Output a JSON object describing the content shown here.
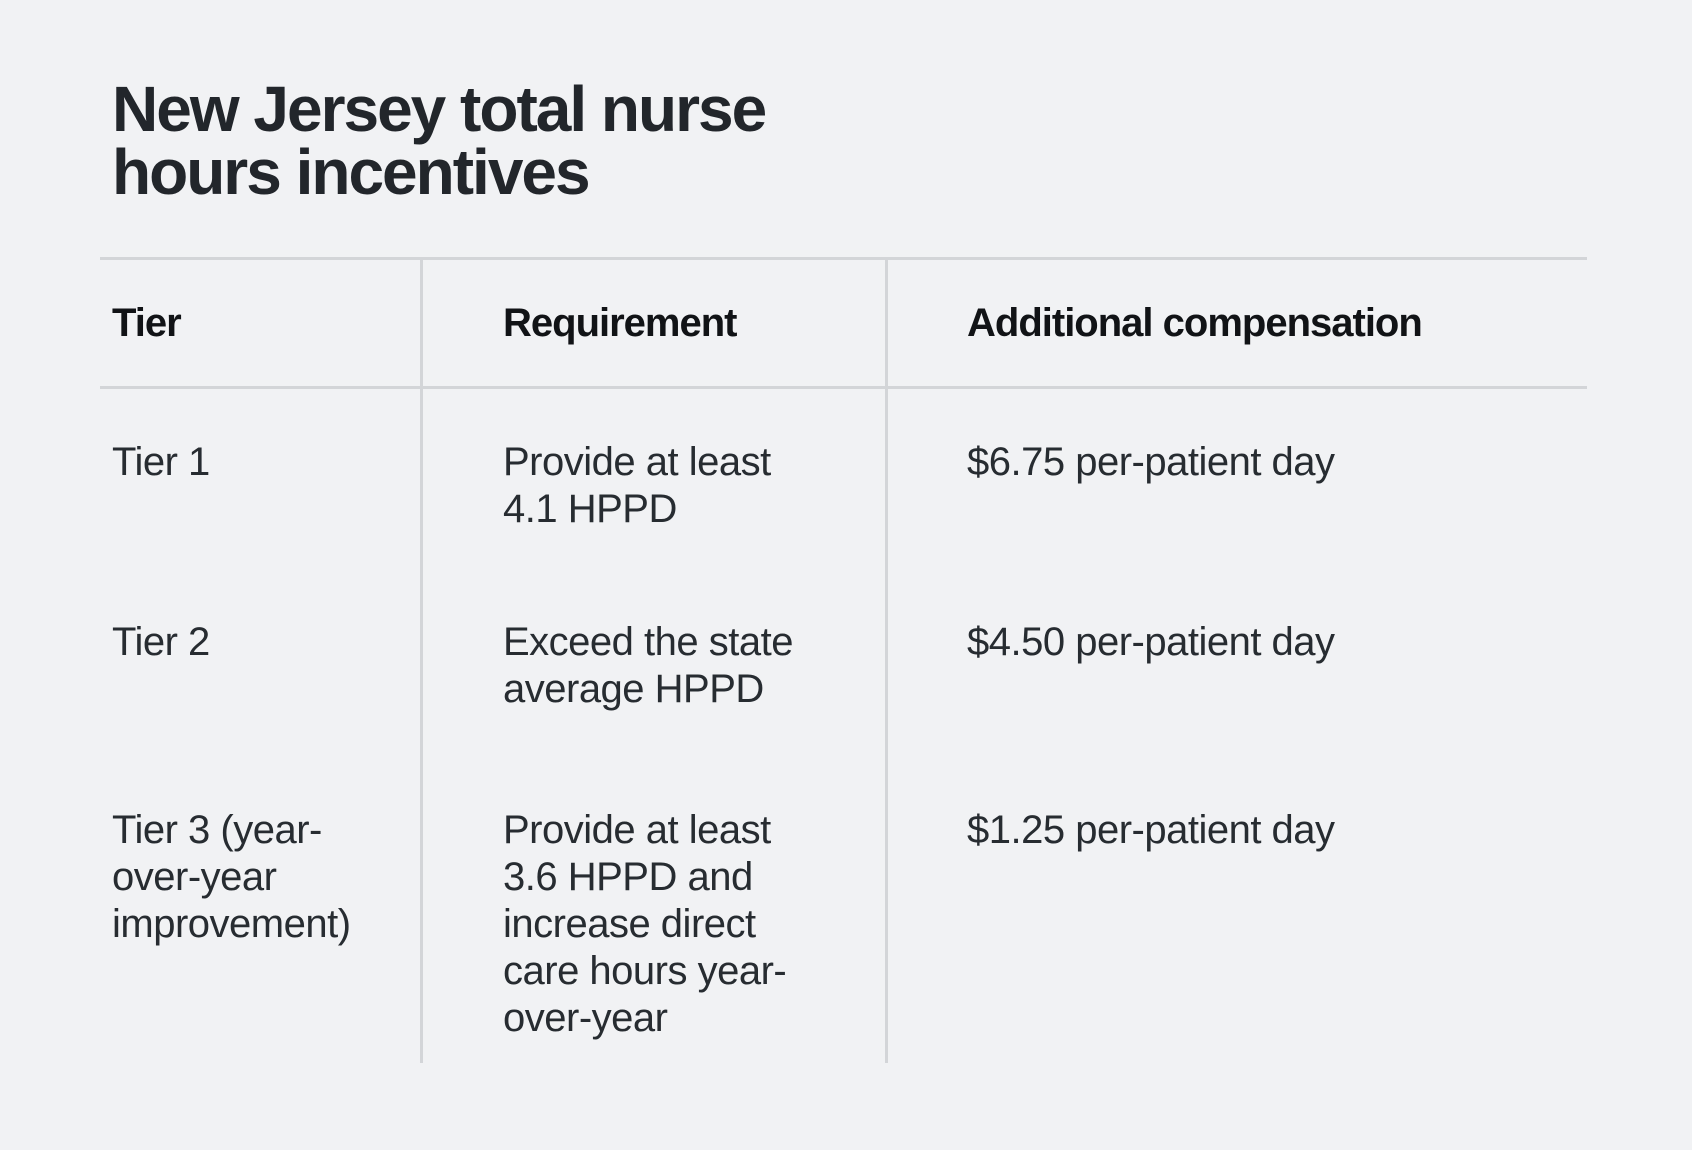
{
  "title": "New Jersey total nurse\nhours incentives",
  "colors": {
    "background": "#f1f2f4",
    "title_text": "#22262b",
    "body_text": "#272c31",
    "header_text": "#111316",
    "rule": "#d3d5d8"
  },
  "table": {
    "columns": {
      "tier": "Tier",
      "requirement": "Requirement",
      "compensation": "Additional compensation"
    },
    "rows": [
      {
        "tier": "Tier 1",
        "requirement": "Provide at least\n4.1 HPPD",
        "compensation": "$6.75 per-patient day"
      },
      {
        "tier": "Tier 2",
        "requirement": "Exceed the state\naverage HPPD",
        "compensation": "$4.50 per-patient day"
      },
      {
        "tier": "Tier 3 (year-\nover-year\nimprovement)",
        "requirement": "Provide at least\n3.6 HPPD and\nincrease direct\ncare hours year-\nover-year",
        "compensation": "$1.25 per-patient day"
      }
    ]
  },
  "chart_data": {
    "type": "table",
    "title": "New Jersey total nurse hours incentives",
    "columns": [
      "Tier",
      "Requirement",
      "Additional compensation"
    ],
    "rows": [
      [
        "Tier 1",
        "Provide at least 4.1 HPPD",
        "$6.75 per-patient day"
      ],
      [
        "Tier 2",
        "Exceed the state average HPPD",
        "$4.50 per-patient day"
      ],
      [
        "Tier 3 (year-over-year improvement)",
        "Provide at least 3.6 HPPD and increase direct care hours year-over-year",
        "$1.25 per-patient day"
      ]
    ]
  }
}
